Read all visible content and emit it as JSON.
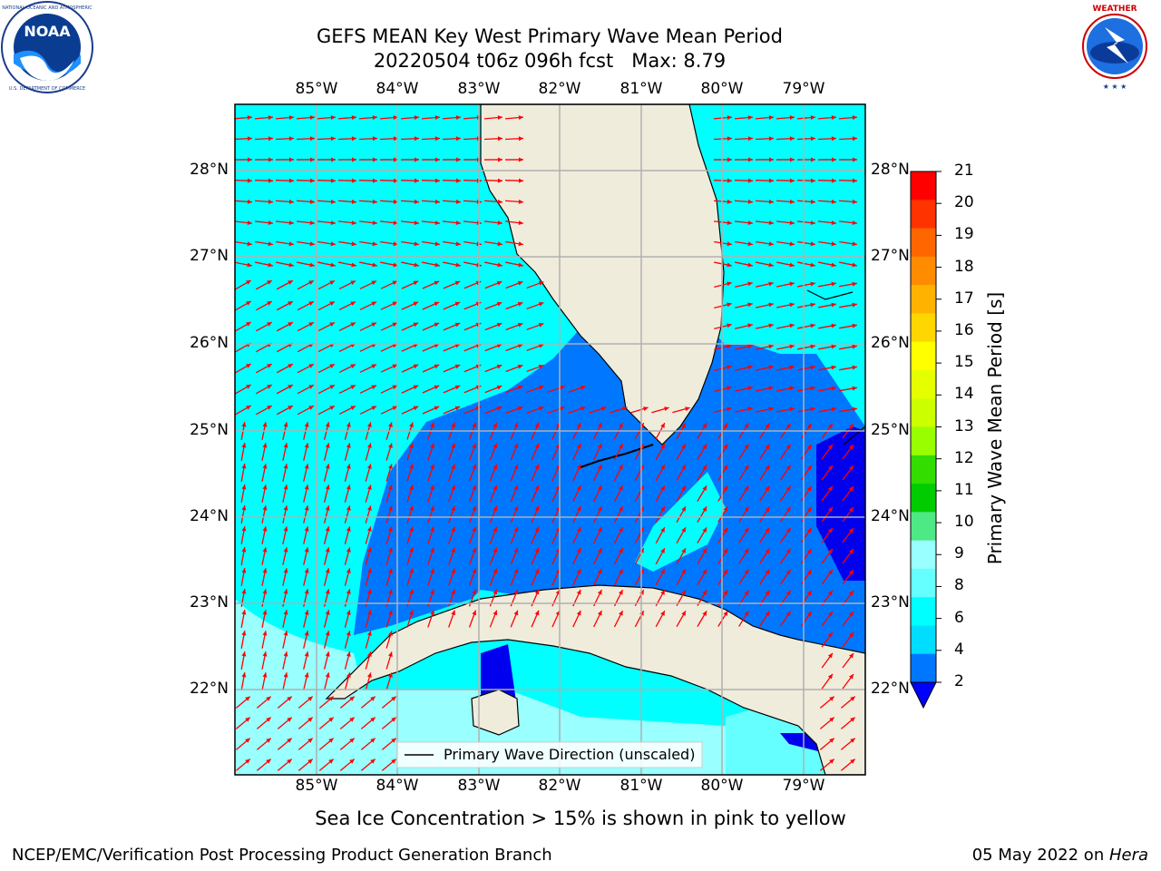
{
  "header": {
    "title_line1": "GEFS MEAN Key West Primary Wave Mean Period",
    "title_line2": "20220504 t06z 096h fcst   Max: 8.79"
  },
  "logos": {
    "left": {
      "name": "NOAA",
      "ring_text": "NATIONAL OCEANIC AND ATMOSPHERIC ADMINISTRATION · U.S. DEPARTMENT OF COMMERCE"
    },
    "right": {
      "ring_text": "NATIONAL WEATHER SERVICE"
    }
  },
  "map": {
    "lon_labels": [
      "85°W",
      "84°W",
      "83°W",
      "82°W",
      "81°W",
      "80°W",
      "79°W"
    ],
    "lat_labels": [
      "28°N",
      "27°N",
      "26°N",
      "25°N",
      "24°N",
      "23°N",
      "22°N"
    ],
    "legend_label": "Primary Wave Direction (unscaled)",
    "arrow_color": "#ff0000",
    "land_color": "#efecdc"
  },
  "colorbar": {
    "title": "Primary Wave Mean Period [s]",
    "ticks": [
      "21",
      "20",
      "19",
      "18",
      "17",
      "16",
      "15",
      "14",
      "13",
      "12",
      "11",
      "10",
      "9",
      "8",
      "6",
      "4",
      "2"
    ],
    "colors": [
      "#ff0000",
      "#ff3300",
      "#ff6600",
      "#ff8c00",
      "#ffb300",
      "#ffd700",
      "#ffff00",
      "#e6ff00",
      "#ccff00",
      "#99ff00",
      "#33dd00",
      "#00cc00",
      "#4ee884",
      "#99ffff",
      "#66ffff",
      "#00ffff",
      "#00ddff",
      "#0077ff",
      "#0000ff"
    ]
  },
  "captions": {
    "sea_ice": "Sea Ice Concentration > 15% is shown in pink to yellow",
    "footer_left": "NCEP/EMC/Verification Post Processing Product Generation Branch",
    "footer_right_prefix": "05 May 2022 on ",
    "footer_right_host": "Hera"
  }
}
